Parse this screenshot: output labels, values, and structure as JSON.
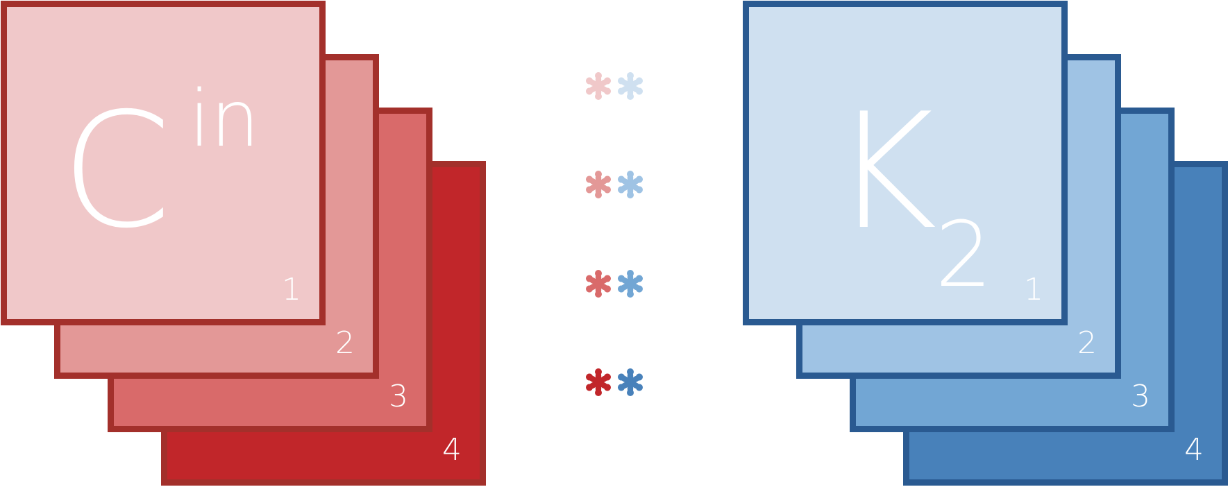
{
  "left_stack": {
    "base": "C",
    "superscript": "in",
    "border_color": "#a3302b",
    "cards": [
      {
        "number": "4",
        "fill": "#c1262a"
      },
      {
        "number": "3",
        "fill": "#d96a6a"
      },
      {
        "number": "2",
        "fill": "#e39897"
      },
      {
        "number": "1",
        "fill": "#f0c8c9"
      }
    ]
  },
  "right_stack": {
    "base": "K",
    "subscript": "2",
    "border_color": "#2a5a91",
    "cards": [
      {
        "number": "4",
        "fill": "#4881ba"
      },
      {
        "number": "3",
        "fill": "#72a6d4"
      },
      {
        "number": "2",
        "fill": "#9fc3e4"
      },
      {
        "number": "1",
        "fill": "#cfe0f0"
      }
    ]
  },
  "asterisk_pairs": [
    {
      "left_color": "#f0c8c9",
      "right_color": "#cfe0f0"
    },
    {
      "left_color": "#e39897",
      "right_color": "#9fc3e4"
    },
    {
      "left_color": "#d96a6a",
      "right_color": "#72a6d4"
    },
    {
      "left_color": "#c1262a",
      "right_color": "#4881ba"
    }
  ]
}
